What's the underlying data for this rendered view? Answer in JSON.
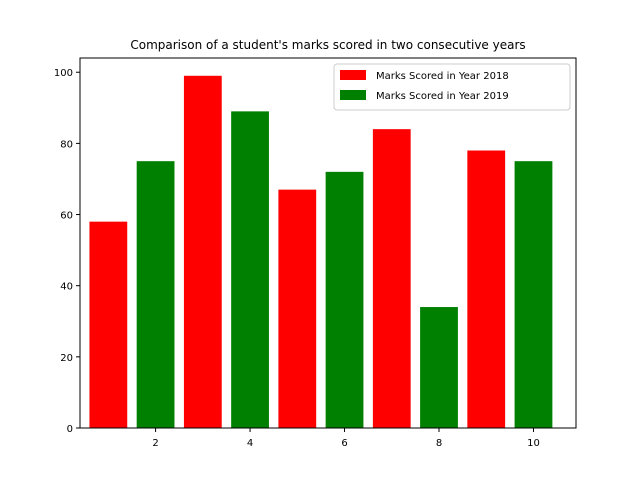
{
  "chart_data": {
    "type": "bar",
    "title": "Comparison of a student's marks scored in two consecutive years",
    "xlabel": "",
    "ylabel": "",
    "xlim": [
      0.4,
      10.9
    ],
    "ylim": [
      0,
      104
    ],
    "xticks": [
      2,
      4,
      6,
      8,
      10
    ],
    "yticks": [
      0,
      20,
      40,
      60,
      80,
      100
    ],
    "grid": false,
    "legend_position": "top-right",
    "series": [
      {
        "name": "Marks Scored in Year 2018",
        "color": "#ff0000",
        "x": [
          1,
          3,
          5,
          7,
          9
        ],
        "values": [
          58,
          99,
          67,
          84,
          78
        ]
      },
      {
        "name": "Marks Scored in Year 2019",
        "color": "#008000",
        "x": [
          2,
          4,
          6,
          8,
          10
        ],
        "values": [
          75,
          89,
          72,
          34,
          75
        ]
      }
    ]
  }
}
